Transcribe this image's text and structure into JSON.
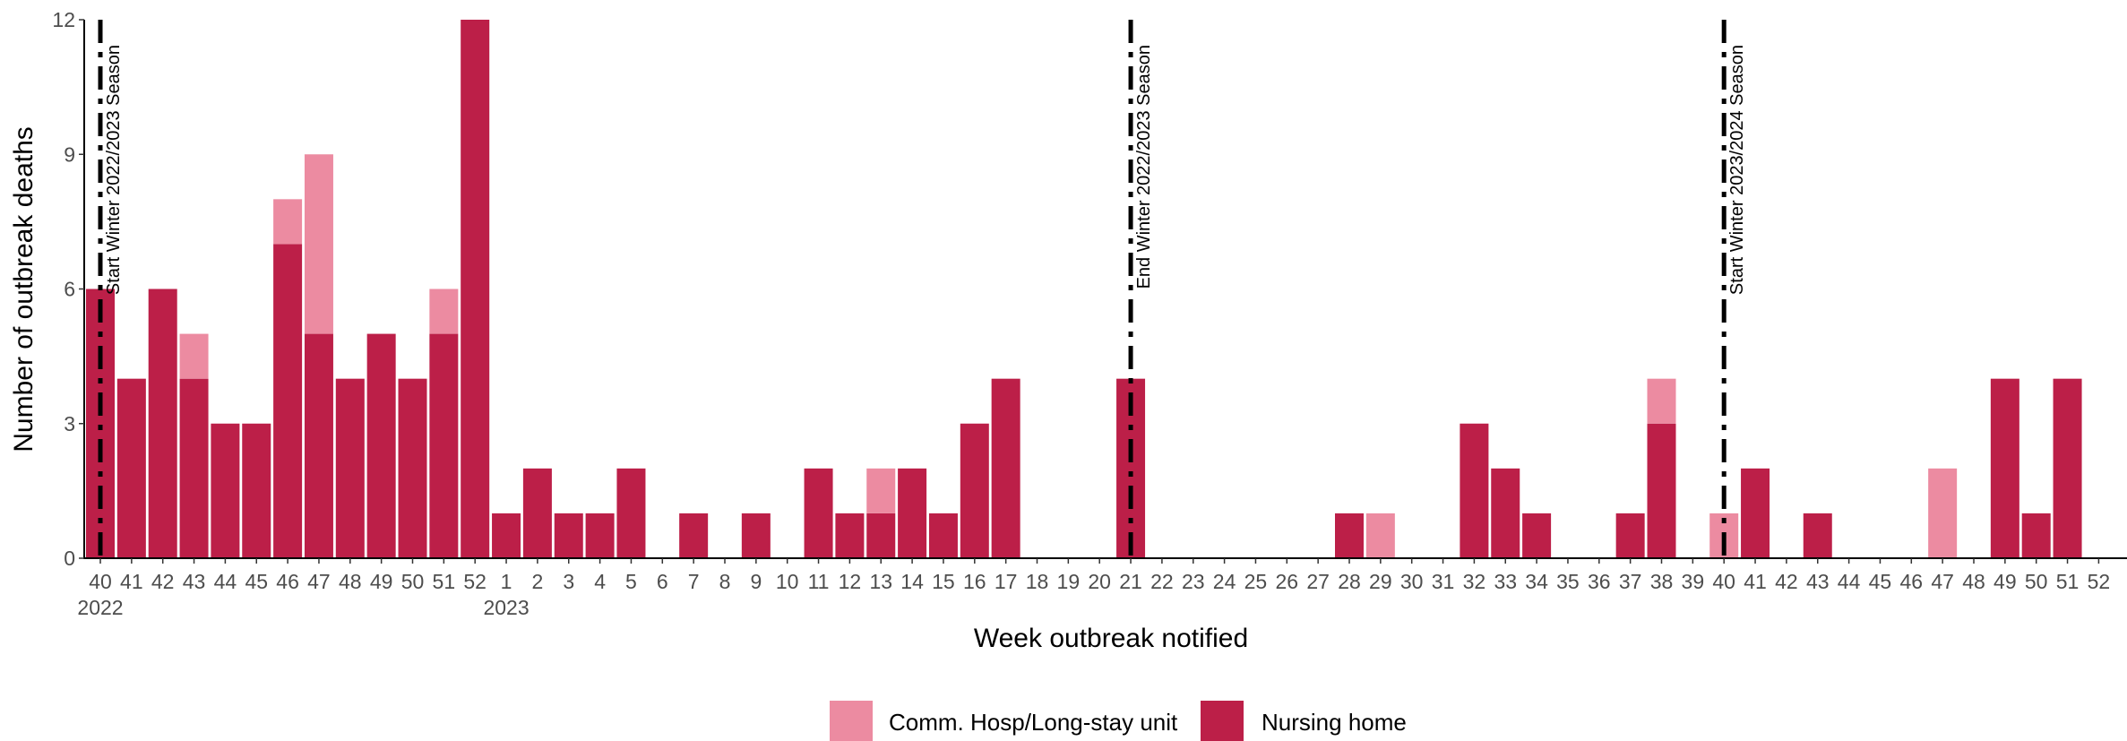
{
  "chart_data": {
    "type": "bar",
    "stacked": true,
    "xlabel": "Week outbreak notified",
    "ylabel": "Number of outbreak deaths",
    "ylim": [
      0,
      12
    ],
    "yticks": [
      0,
      3,
      6,
      9,
      12
    ],
    "grid": false,
    "legend_position": "bottom",
    "categories": [
      "40",
      "41",
      "42",
      "43",
      "44",
      "45",
      "46",
      "47",
      "48",
      "49",
      "50",
      "51",
      "52",
      "1",
      "2",
      "3",
      "4",
      "5",
      "6",
      "7",
      "8",
      "9",
      "10",
      "11",
      "12",
      "13",
      "14",
      "15",
      "16",
      "17",
      "18",
      "19",
      "20",
      "21",
      "22",
      "23",
      "24",
      "25",
      "26",
      "27",
      "28",
      "29",
      "30",
      "31",
      "32",
      "33",
      "34",
      "35",
      "36",
      "37",
      "38",
      "39",
      "40",
      "41",
      "42",
      "43",
      "44",
      "45",
      "46",
      "47",
      "48",
      "49",
      "50",
      "51",
      "52"
    ],
    "year_labels": [
      {
        "category_index": 0,
        "label": "2022"
      },
      {
        "category_index": 13,
        "label": "2023"
      }
    ],
    "series": [
      {
        "name": "Nursing home",
        "color": "#bc1f48",
        "values": [
          6,
          4,
          6,
          4,
          3,
          3,
          7,
          5,
          4,
          5,
          4,
          5,
          12,
          1,
          2,
          1,
          1,
          2,
          0,
          1,
          0,
          1,
          0,
          2,
          1,
          1,
          2,
          1,
          3,
          4,
          0,
          0,
          0,
          4,
          0,
          0,
          0,
          0,
          0,
          0,
          1,
          0,
          0,
          0,
          3,
          2,
          1,
          0,
          0,
          1,
          3,
          0,
          0,
          2,
          0,
          1,
          0,
          0,
          0,
          0,
          0,
          4,
          1,
          4,
          0
        ]
      },
      {
        "name": "Comm. Hosp/Long-stay unit",
        "color": "#ec8ba1",
        "values": [
          0,
          0,
          0,
          1,
          0,
          0,
          1,
          4,
          0,
          0,
          0,
          1,
          0,
          0,
          0,
          0,
          0,
          0,
          0,
          0,
          0,
          0,
          0,
          0,
          0,
          1,
          0,
          0,
          0,
          0,
          0,
          0,
          0,
          0,
          0,
          0,
          0,
          0,
          0,
          0,
          0,
          1,
          0,
          0,
          0,
          0,
          0,
          0,
          0,
          0,
          1,
          0,
          1,
          0,
          0,
          0,
          0,
          0,
          0,
          2,
          0,
          0,
          0,
          0,
          0
        ]
      }
    ],
    "legend_order": [
      "Comm. Hosp/Long-stay unit",
      "Nursing home"
    ],
    "reference_lines": [
      {
        "category_index": 0,
        "label": "Start Winter 2022/2023 Season"
      },
      {
        "category_index": 33,
        "label": "End Winter 2022/2023 Season"
      },
      {
        "category_index": 52,
        "label": "Start Winter 2023/2024 Season"
      }
    ]
  }
}
